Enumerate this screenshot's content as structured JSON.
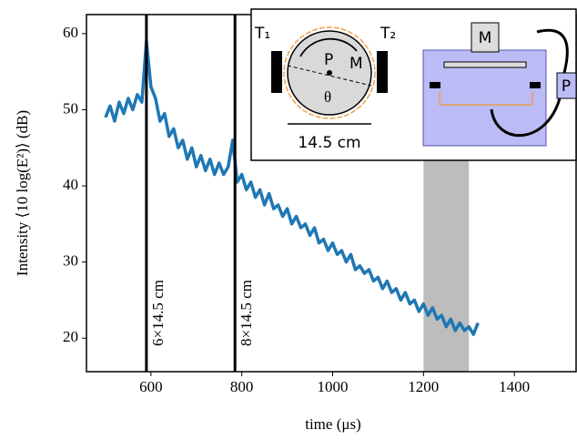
{
  "chart_data": {
    "type": "line",
    "xlabel": "time (μs)",
    "ylabel": "Intensity ⟨10 log(E²)⟩ (dB)",
    "x": [
      500,
      510,
      520,
      530,
      540,
      550,
      560,
      570,
      580,
      590,
      600,
      610,
      620,
      630,
      640,
      650,
      660,
      670,
      680,
      690,
      700,
      710,
      720,
      730,
      740,
      750,
      760,
      770,
      780,
      790,
      800,
      810,
      820,
      830,
      840,
      850,
      860,
      870,
      880,
      890,
      900,
      910,
      920,
      930,
      940,
      950,
      960,
      970,
      980,
      990,
      1000,
      1010,
      1020,
      1030,
      1040,
      1050,
      1060,
      1070,
      1080,
      1090,
      1100,
      1110,
      1120,
      1130,
      1140,
      1150,
      1160,
      1170,
      1180,
      1190,
      1200,
      1210,
      1220,
      1230,
      1240,
      1250,
      1260,
      1270,
      1280,
      1290,
      1300,
      1310,
      1320
    ],
    "series": [
      {
        "color": "#1f77b4",
        "values": [
          49,
          50.5,
          48.5,
          51,
          49.5,
          51.5,
          50,
          52,
          51,
          59,
          53,
          51.5,
          48.5,
          49.5,
          46.5,
          47.5,
          45,
          46,
          43.5,
          45,
          42.5,
          44,
          42,
          43.5,
          41.5,
          43,
          41.5,
          42.5,
          46,
          40.5,
          41.5,
          39.5,
          40.5,
          38.5,
          39.5,
          37.5,
          39,
          37,
          37.5,
          36,
          37,
          35,
          36,
          34.5,
          35,
          33.5,
          34.5,
          32.5,
          33,
          31.5,
          32.5,
          31,
          31.5,
          30,
          31,
          29,
          29.5,
          28.5,
          29,
          27.5,
          28,
          26.5,
          27.5,
          26,
          26.5,
          25,
          26,
          24.5,
          25,
          23.5,
          24.5,
          23,
          24,
          22.5,
          23,
          21.5,
          22.5,
          21,
          22,
          21,
          21.5,
          20.5,
          22
        ]
      }
    ],
    "xlim": [
      458,
      1536
    ],
    "ylim": [
      15.6,
      62.5
    ],
    "xticks": [
      600,
      800,
      1000,
      1200,
      1400
    ],
    "yticks": [
      20,
      30,
      40,
      50,
      60
    ],
    "vlines": [
      {
        "x": 590,
        "label": "6×14.5 cm"
      },
      {
        "x": 785,
        "label": "8×14.5 cm"
      }
    ],
    "span": {
      "from": 1200,
      "to": 1300,
      "color": "#bdbdbd"
    },
    "inset_labels": {
      "t1": "T₁",
      "t2": "T₂",
      "p": "P",
      "m": "M",
      "theta": "θ",
      "size": "14.5 cm",
      "m2": "M",
      "p2": "P"
    }
  }
}
